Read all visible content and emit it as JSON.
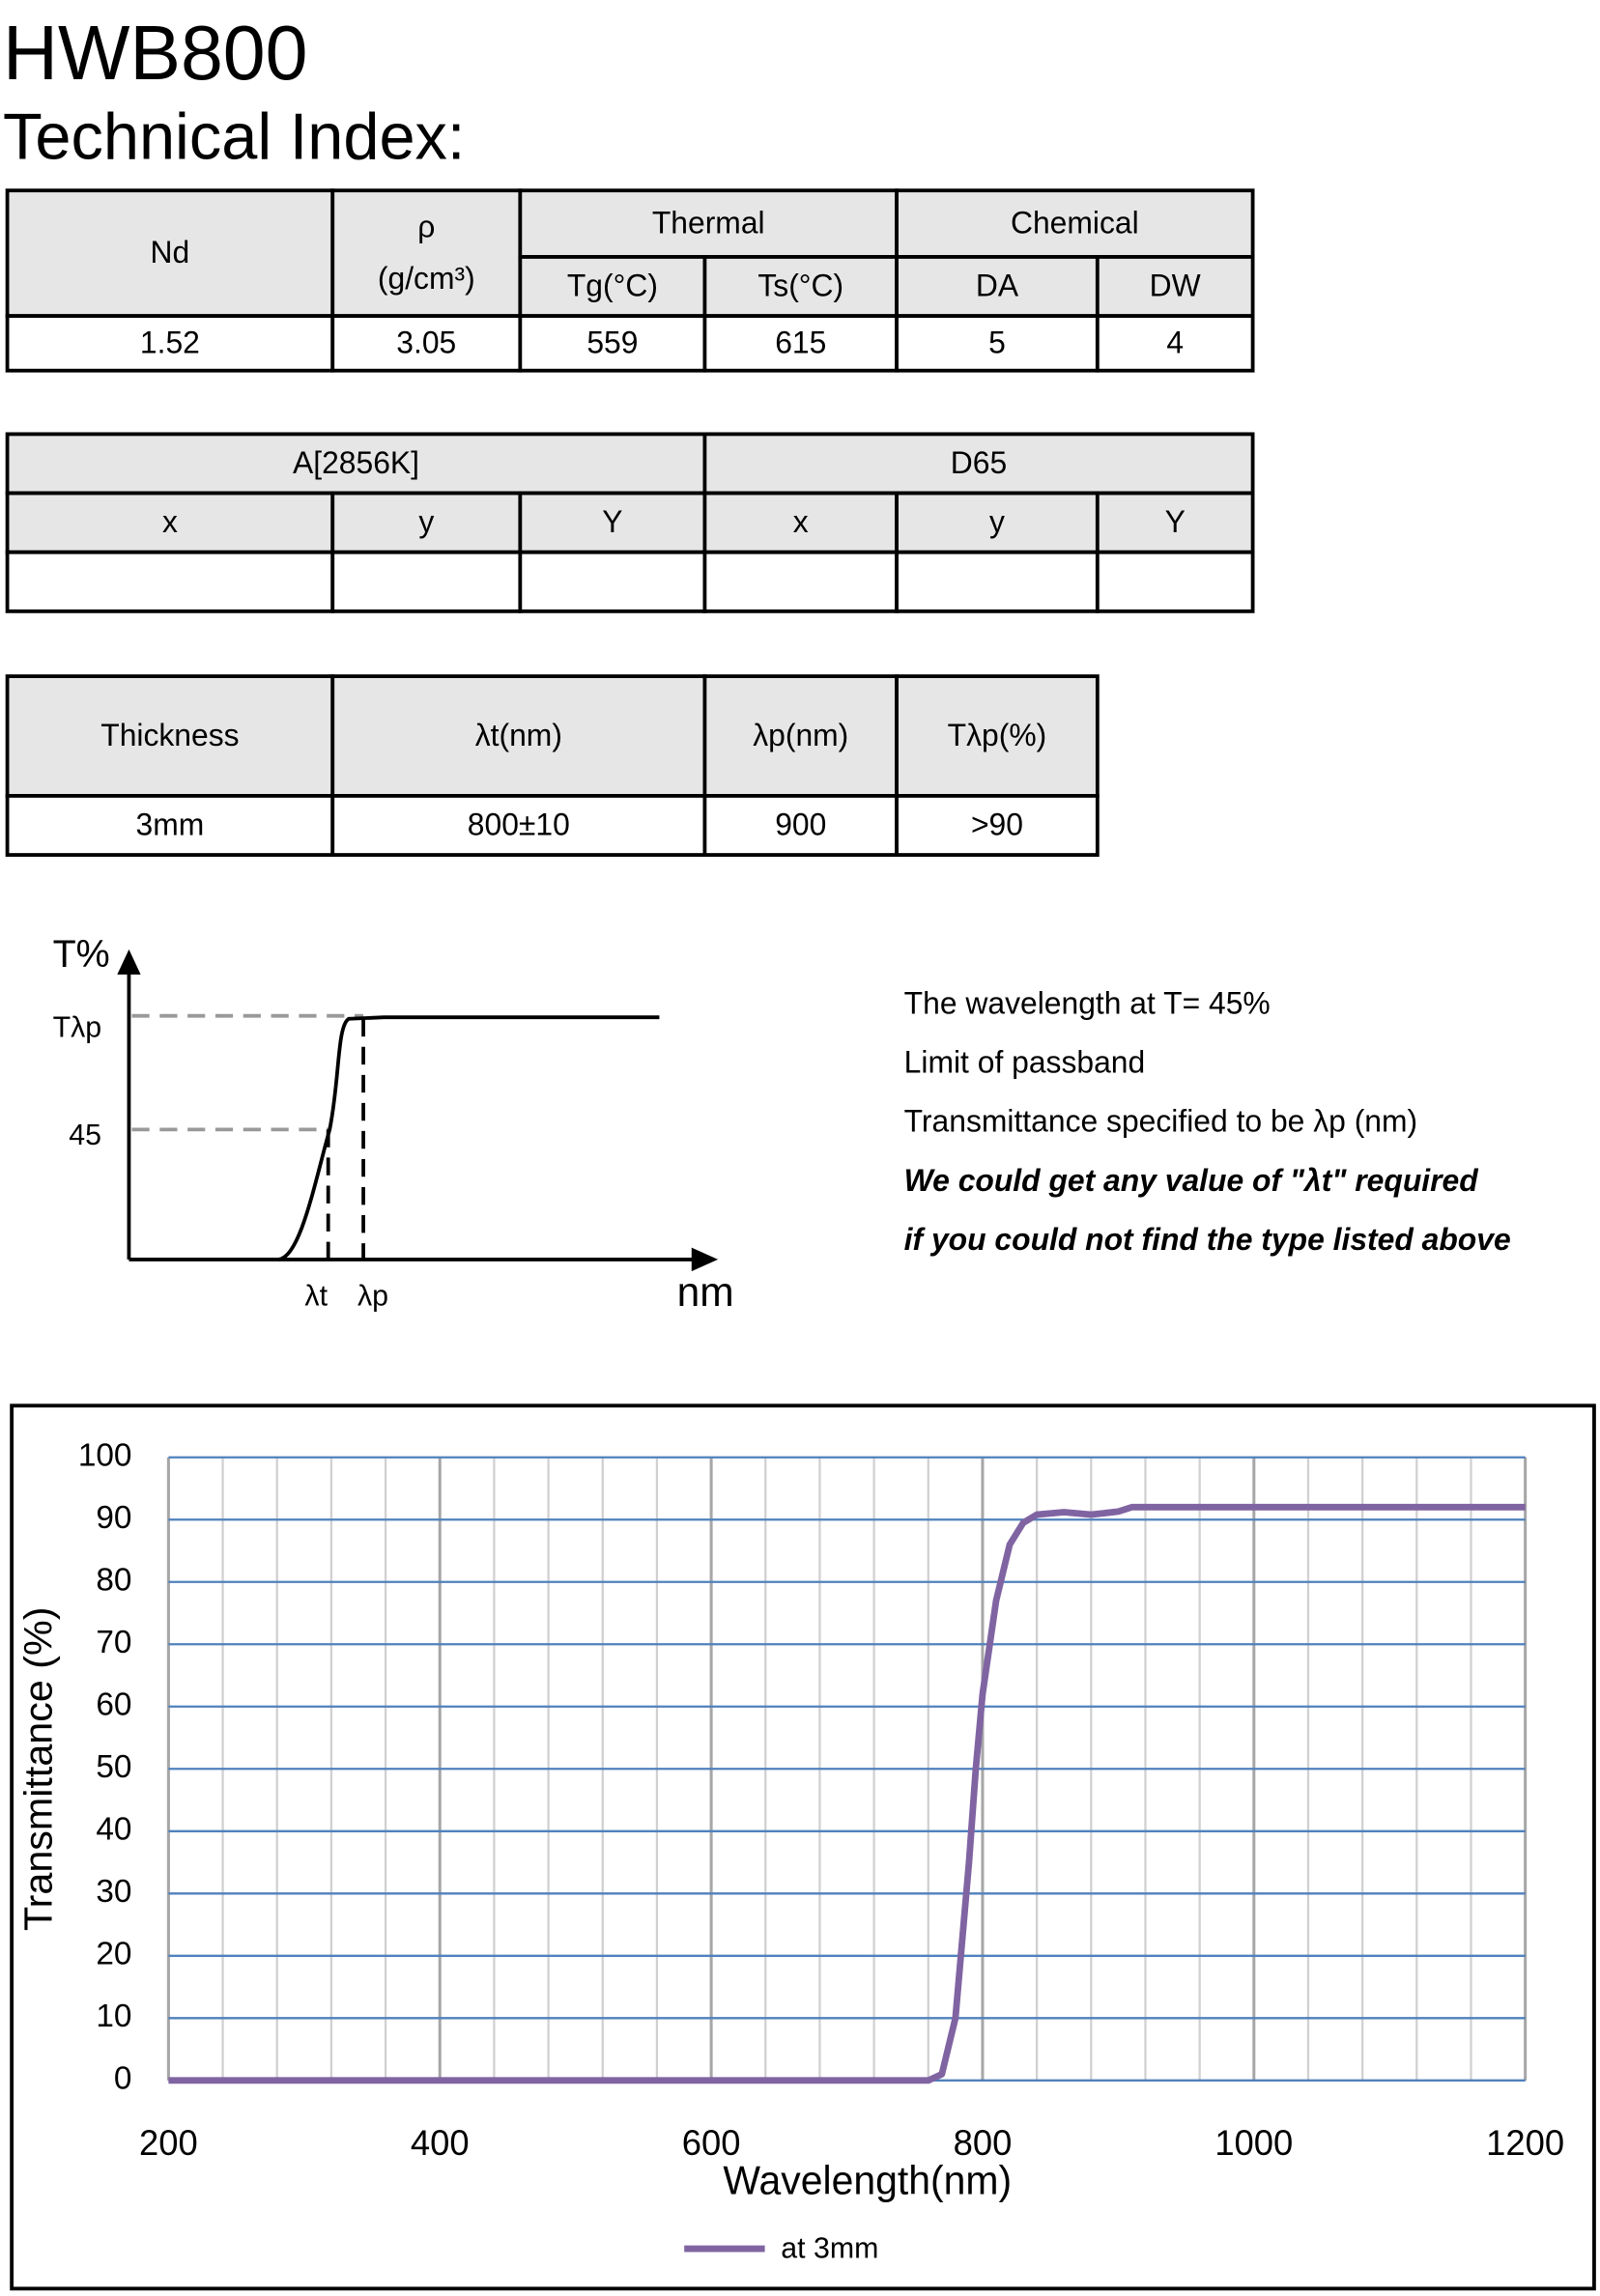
{
  "header": {
    "model": "HWB800",
    "subtitle": "Technical Index:"
  },
  "table1": {
    "headers": {
      "nd": "Nd",
      "density": "ρ",
      "density_unit": "(g/cm³)",
      "thermal": "Thermal",
      "chemical": "Chemical",
      "tg": "Tg(°C)",
      "ts": "Ts(°C)",
      "da": "DA",
      "dw": "DW"
    },
    "row": [
      "1.52",
      "3.05",
      "559",
      "615",
      "5",
      "4"
    ]
  },
  "table2": {
    "groups": [
      "A[2856K]",
      "D65"
    ],
    "columns": [
      "x",
      "y",
      "Y",
      "x",
      "y",
      "Y"
    ]
  },
  "table3": {
    "columns": [
      "Thickness",
      "λt(nm)",
      "λp(nm)",
      "Tλp(%)"
    ],
    "row": [
      "3mm",
      "800±10",
      "900",
      ">90"
    ]
  },
  "diagram": {
    "y_label": "T%",
    "t_lambda_p": "Tλp",
    "t45": "45",
    "lambda_t": "λt",
    "lambda_p": "λp",
    "x_label": "nm",
    "notes": [
      "The wavelength at  T= 45%",
      "Limit of passband",
      "Transmittance specified to be λp (nm)",
      "We could get any value of \"λt\" required",
      "if you could not find the type listed above"
    ]
  },
  "chart_data": {
    "type": "line",
    "x_label": "Wavelength(nm)",
    "y_label": "Transmittance (%)",
    "x": [
      200,
      400,
      600,
      760,
      770,
      780,
      790,
      795,
      800,
      810,
      820,
      830,
      840,
      860,
      880,
      900,
      910,
      1000,
      1200
    ],
    "series": [
      {
        "name": "at 3mm",
        "color": "#8064a2",
        "values": [
          0,
          0,
          0,
          0,
          1,
          10,
          35,
          50,
          62,
          77,
          86,
          89.5,
          90.8,
          91.2,
          90.8,
          91.3,
          92,
          92,
          92
        ]
      }
    ],
    "xlim": [
      200,
      1200
    ],
    "xticks": [
      200,
      400,
      600,
      800,
      1000,
      1200
    ],
    "ylim": [
      0,
      100
    ],
    "yticks": [
      0,
      10,
      20,
      30,
      40,
      50,
      60,
      70,
      80,
      90,
      100
    ],
    "grid": true,
    "legend": "bottom"
  }
}
